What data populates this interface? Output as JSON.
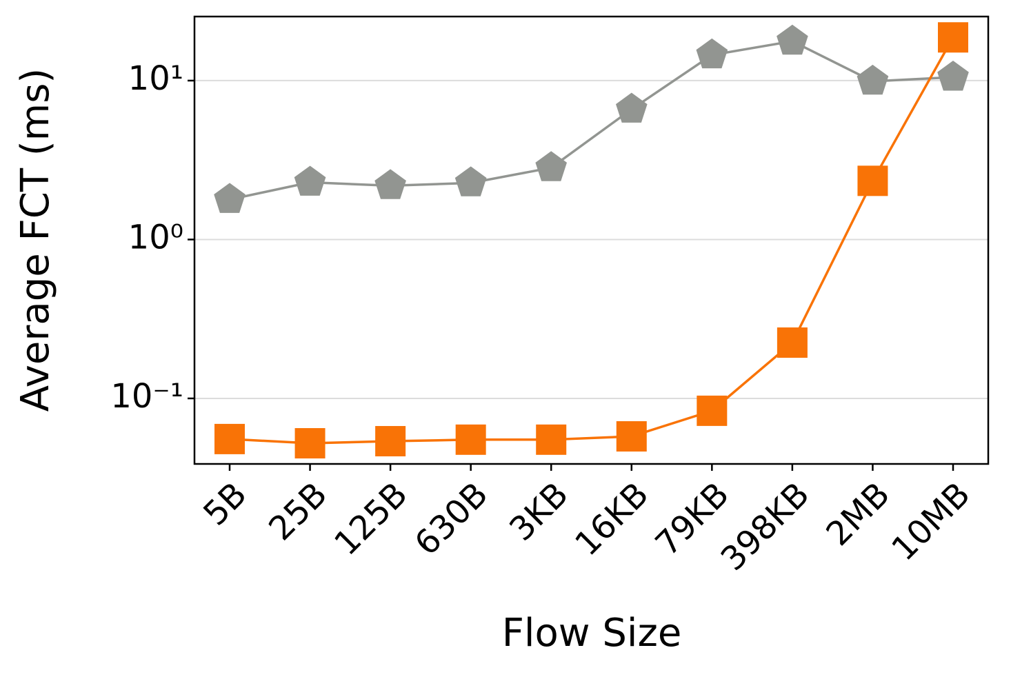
{
  "chart_data": {
    "type": "line",
    "x_label": "Flow Size",
    "y_label": "Average FCT (ms)",
    "categories": [
      "5B",
      "25B",
      "125B",
      "630B",
      "3KB",
      "16KB",
      "79KB",
      "398KB",
      "2MB",
      "10MB"
    ],
    "series": [
      {
        "color": "#929591",
        "marker": "pentagon",
        "values": [
          1.785,
          2.29,
          2.18,
          2.27,
          2.83,
          6.6,
          14.5,
          17.7,
          9.9,
          10.5
        ]
      },
      {
        "color": "#f97306",
        "marker": "square",
        "values": [
          0.0555,
          0.0522,
          0.0538,
          0.055,
          0.055,
          0.0577,
          0.0836,
          0.2245,
          2.34,
          18.7
        ]
      }
    ],
    "y_scale": "log",
    "ylim": [
      0.0387,
      25.3
    ],
    "yticks": [
      {
        "value": 0.1,
        "label": "10⁻¹"
      },
      {
        "value": 1,
        "label": "10⁰"
      },
      {
        "value": 10,
        "label": "10¹"
      }
    ],
    "grid": true
  }
}
